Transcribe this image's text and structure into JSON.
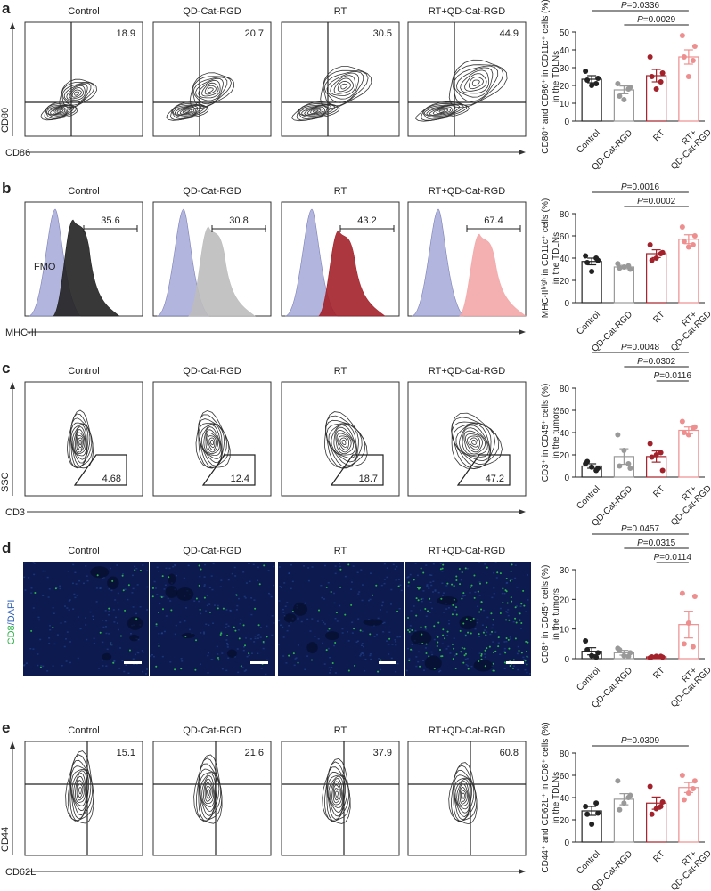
{
  "figure": {
    "panel_letters": [
      "a",
      "b",
      "c",
      "d",
      "e"
    ],
    "group_titles": [
      "Control",
      "QD-Cat-RGD",
      "RT",
      "RT+QD-Cat-RGD"
    ],
    "group_short": [
      "Control",
      "QD-Cat-RGD",
      "RT",
      "RT+\nQD-Cat-RGD"
    ],
    "colors": {
      "control": "#222222",
      "qd": "#999999",
      "rt": "#a3212a",
      "rtqd": "#ee8e8e",
      "fmo": "#9fa3d4",
      "micro_bg": "#0c1a4f",
      "cd8_green": "#2fb24a"
    }
  },
  "panels": [
    {
      "id": "a",
      "flow": {
        "kind": "quadrant-contour",
        "y_axis_label": "CD80",
        "x_axis_label": "CD86",
        "values": [
          "18.9",
          "20.7",
          "30.5",
          "44.9"
        ]
      },
      "chart_data": {
        "type": "bar",
        "categories": [
          "Control",
          "QD-Cat-RGD",
          "RT",
          "RT+QD-Cat-RGD"
        ],
        "values": [
          23.5,
          17.5,
          25.5,
          36
        ],
        "errors": [
          2,
          2.2,
          3.5,
          4
        ],
        "points": [
          [
            28,
            24,
            20,
            23,
            21
          ],
          [
            21,
            19,
            12,
            14,
            18
          ],
          [
            36,
            27,
            18,
            25,
            22
          ],
          [
            48,
            42,
            25,
            36,
            34
          ]
        ],
        "ylabel": "CD80⁺ and CD86⁺ in CD11c⁺ cells (%)\nin the TDLNs",
        "ylim": [
          0,
          50
        ],
        "yticks": [
          0,
          10,
          20,
          30,
          40,
          50
        ],
        "comparisons": [
          {
            "from": 0,
            "to": 3,
            "label": "P=0.0336"
          },
          {
            "from": 1,
            "to": 3,
            "label": "P=0.0029"
          }
        ]
      }
    },
    {
      "id": "b",
      "flow": {
        "kind": "histogram",
        "x_axis_label": "MHC-II",
        "fmo_label": "FMO",
        "values": [
          "35.6",
          "30.8",
          "43.2",
          "67.4"
        ]
      },
      "chart_data": {
        "type": "bar",
        "categories": [
          "Control",
          "QD-Cat-RGD",
          "RT",
          "RT+QD-Cat-RGD"
        ],
        "values": [
          37,
          32,
          44,
          57
        ],
        "errors": [
          3,
          1.5,
          3.5,
          4
        ],
        "points": [
          [
            42,
            38,
            28,
            36,
            40
          ],
          [
            35,
            30,
            32,
            31,
            33
          ],
          [
            52,
            45,
            40,
            38,
            44
          ],
          [
            68,
            60,
            50,
            55,
            52
          ]
        ],
        "ylabel": "MHC-IIʰⁱᵍʰ in CD11c⁺ cells (%)\nin the TDLNs",
        "ylim": [
          0,
          80
        ],
        "yticks": [
          0,
          20,
          40,
          60,
          80
        ],
        "comparisons": [
          {
            "from": 0,
            "to": 3,
            "label": "P=0.0016"
          },
          {
            "from": 1,
            "to": 3,
            "label": "P=0.0002"
          }
        ]
      }
    },
    {
      "id": "c",
      "flow": {
        "kind": "gate-contour",
        "y_axis_label": "SSC",
        "x_axis_label": "CD3",
        "values": [
          "4.68",
          "12.4",
          "18.7",
          "47.2"
        ]
      },
      "chart_data": {
        "type": "bar",
        "categories": [
          "Control",
          "QD-Cat-RGD",
          "RT",
          "RT+QD-Cat-RGD"
        ],
        "values": [
          10,
          18.5,
          18.5,
          42
        ],
        "errors": [
          2,
          7,
          5,
          3
        ],
        "points": [
          [
            12,
            8,
            9,
            14,
            6
          ],
          [
            38,
            8,
            24,
            10,
            12
          ],
          [
            30,
            6,
            20,
            18,
            22
          ],
          [
            50,
            45,
            38,
            40,
            44
          ]
        ],
        "ylabel": "CD3⁺ in CD45⁺ cells (%)\nin the tumors",
        "ylim": [
          0,
          80
        ],
        "yticks": [
          0,
          20,
          40,
          60,
          80
        ],
        "comparisons": [
          {
            "from": 0,
            "to": 3,
            "label": "P=0.0048"
          },
          {
            "from": 1,
            "to": 3,
            "label": "P=0.0302"
          },
          {
            "from": 2,
            "to": 3,
            "label": "P=0.0116"
          }
        ]
      }
    },
    {
      "id": "d",
      "micro": {
        "kind": "immunofluorescence",
        "stain_label_1": "CD8",
        "stain_label_sep": "/",
        "stain_label_2": "DAPI",
        "cd8_density": [
          20,
          45,
          30,
          160
        ]
      },
      "chart_data": {
        "type": "bar",
        "categories": [
          "Control",
          "QD-Cat-RGD",
          "RT",
          "RT+QD-Cat-RGD"
        ],
        "values": [
          2.5,
          2,
          0.6,
          11.5
        ],
        "errors": [
          1.2,
          0.8,
          0.3,
          4.5
        ],
        "points": [
          [
            6,
            2,
            1,
            3,
            0.5
          ],
          [
            3.5,
            2,
            1,
            3,
            0.8
          ],
          [
            0.3,
            0.5,
            0.8,
            0.6,
            0.8
          ],
          [
            22,
            21,
            12,
            5,
            4
          ]
        ],
        "ylabel": "CD8⁺ in CD45⁺ cells (%)\nin the tumors",
        "ylim": [
          0,
          30
        ],
        "yticks": [
          0,
          10,
          20,
          30
        ],
        "comparisons": [
          {
            "from": 0,
            "to": 3,
            "label": "P=0.0457"
          },
          {
            "from": 1,
            "to": 3,
            "label": "P=0.0315"
          },
          {
            "from": 2,
            "to": 3,
            "label": "P=0.0114"
          }
        ]
      }
    },
    {
      "id": "e",
      "flow": {
        "kind": "quadrant-contour",
        "y_axis_label": "CD44",
        "x_axis_label": "CD62L",
        "values": [
          "15.1",
          "21.6",
          "37.9",
          "60.8"
        ]
      },
      "chart_data": {
        "type": "bar",
        "categories": [
          "Control",
          "QD-Cat-RGD",
          "RT",
          "RT+QD-Cat-RGD"
        ],
        "values": [
          28,
          38.5,
          35,
          49
        ],
        "errors": [
          4,
          5,
          5.5,
          4.5
        ],
        "points": [
          [
            32,
            26,
            16,
            25,
            35
          ],
          [
            55,
            42,
            35,
            29,
            40
          ],
          [
            50,
            36,
            30,
            25,
            32
          ],
          [
            60,
            55,
            44,
            38,
            48
          ]
        ],
        "ylabel": "CD44⁺ and CD62L⁺ in CD8⁺ cells (%)\nin the TDLNs",
        "ylim": [
          0,
          80
        ],
        "yticks": [
          0,
          20,
          40,
          60,
          80
        ],
        "comparisons": [
          {
            "from": 0,
            "to": 3,
            "label": "P=0.0309"
          }
        ]
      }
    }
  ]
}
